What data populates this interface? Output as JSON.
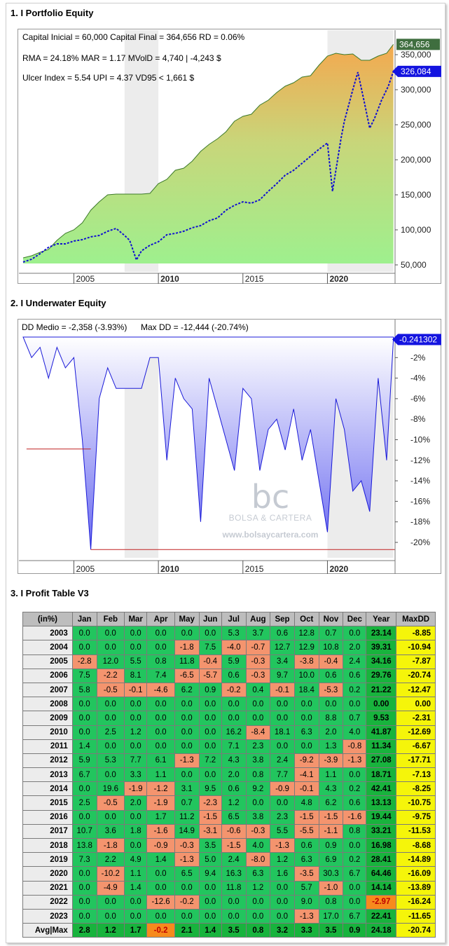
{
  "sections": {
    "equity_title": "1. I Portfolio Equity",
    "underwater_title": "2. I Underwater Equity",
    "profit_title": "3. I Profit Table V3"
  },
  "equity_stats": {
    "line1": "Capital Inicial = 60,000  Capital Final = 364,656  RD = 0.06%",
    "line2": "RMA = 24.18%   MAR = 1.17  MVolD = 4,740 | -4,243 $",
    "line3": "Ulcer Index = 5.54   UPI = 4.37   VD95 < 1,661 $"
  },
  "underwater_stats": {
    "left": "DD Medio = -2,358 (-3.93%)",
    "right": "Max DD = -12,444 (-20.74%)"
  },
  "watermark": {
    "site": "www.bolsaycartera.com"
  },
  "chart_data": [
    {
      "type": "area",
      "x_ticks": [
        "2005",
        "2010",
        "2015",
        "2020"
      ],
      "y_ticks": [
        "50,000",
        "100,000",
        "150,000",
        "200,000",
        "250,000",
        "300,000",
        "350,000"
      ],
      "ylim": [
        40000,
        385000
      ],
      "last_value_labels": [
        "364,656",
        "326,084"
      ],
      "series": [
        {
          "x": [
            2002.0,
            2002.5,
            2003.0,
            2003.5,
            2004.0,
            2004.5,
            2005.0,
            2005.5,
            2006.0,
            2006.5,
            2007.0,
            2007.5,
            2008.0,
            2008.5,
            2009.0,
            2009.5,
            2010.0,
            2010.5,
            2011.0,
            2011.5,
            2012.0,
            2012.5,
            2013.0,
            2013.5,
            2014.0,
            2014.5,
            2015.0,
            2015.5,
            2016.0,
            2016.5,
            2017.0,
            2017.5,
            2018.0,
            2018.5,
            2019.0,
            2019.5,
            2020.0,
            2020.5,
            2021.0,
            2021.5,
            2022.0,
            2022.5,
            2023.0,
            2023.5,
            2023.9
          ],
          "values": [
            60000,
            63000,
            68000,
            72000,
            85000,
            95000,
            100000,
            110000,
            128000,
            140000,
            150000,
            151000,
            151000,
            151000,
            151000,
            152000,
            166000,
            172000,
            185000,
            188000,
            198000,
            212000,
            222000,
            230000,
            240000,
            255000,
            262000,
            265000,
            278000,
            285000,
            296000,
            305000,
            310000,
            318000,
            320000,
            335000,
            348000,
            352000,
            350000,
            351000,
            342000,
            342000,
            348000,
            352000,
            364656
          ]
        },
        {
          "x": [
            2002.0,
            2002.5,
            2003.0,
            2003.5,
            2004.0,
            2004.5,
            2005.0,
            2005.5,
            2006.0,
            2006.5,
            2007.0,
            2007.5,
            2008.0,
            2008.3,
            2008.7,
            2009.0,
            2009.5,
            2010.0,
            2010.5,
            2011.0,
            2011.5,
            2012.0,
            2012.5,
            2013.0,
            2013.5,
            2014.0,
            2014.5,
            2015.0,
            2015.5,
            2016.0,
            2016.5,
            2017.0,
            2017.5,
            2018.0,
            2018.5,
            2019.0,
            2019.5,
            2020.0,
            2020.3,
            2020.8,
            2021.0,
            2021.5,
            2021.8,
            2022.2,
            2022.5,
            2022.8,
            2023.2,
            2023.6,
            2023.9
          ],
          "values": [
            54000,
            58000,
            66000,
            75000,
            80000,
            80000,
            84000,
            86000,
            90000,
            92000,
            98000,
            102000,
            92000,
            85000,
            57000,
            70000,
            78000,
            83000,
            93000,
            95000,
            98000,
            103000,
            106000,
            113000,
            117000,
            128000,
            135000,
            140000,
            138000,
            143000,
            155000,
            166000,
            178000,
            185000,
            195000,
            205000,
            215000,
            224000,
            155000,
            230000,
            255000,
            300000,
            325000,
            280000,
            245000,
            260000,
            285000,
            305000,
            326084
          ]
        }
      ]
    },
    {
      "type": "area",
      "x_ticks": [
        "2005",
        "2010",
        "2015",
        "2020"
      ],
      "y_ticks": [
        "-2%",
        "-4%",
        "-6%",
        "-8%",
        "-10%",
        "-12%",
        "-14%",
        "-16%",
        "-18%",
        "-20%"
      ],
      "ylim": [
        -21.5,
        0
      ],
      "last_value_labels": [
        "-0.241302"
      ],
      "series": [
        {
          "x": [
            2002.0,
            2002.5,
            2003.0,
            2003.5,
            2004.0,
            2004.5,
            2005.0,
            2005.5,
            2006.0,
            2006.5,
            2007.0,
            2007.5,
            2008.0,
            2008.5,
            2009.0,
            2009.5,
            2010.0,
            2010.5,
            2011.0,
            2011.5,
            2012.0,
            2012.5,
            2013.0,
            2013.5,
            2014.0,
            2014.5,
            2015.0,
            2015.5,
            2016.0,
            2016.5,
            2017.0,
            2017.5,
            2018.0,
            2018.5,
            2019.0,
            2019.5,
            2020.0,
            2020.5,
            2021.0,
            2021.5,
            2022.0,
            2022.5,
            2023.0,
            2023.5,
            2023.9
          ],
          "values": [
            0,
            -2,
            -1,
            -4,
            -1,
            -3,
            -2,
            -10,
            -20.7,
            -6,
            -3,
            -5,
            -5,
            -5,
            -5,
            -2,
            -2,
            -12,
            -4,
            -6,
            -7,
            -18,
            -4,
            -7,
            -10,
            -13,
            -5,
            -6,
            -13,
            -9,
            -8,
            -11,
            -7,
            -12,
            -9,
            -14,
            -19,
            -6,
            -9,
            -15,
            -14,
            -17,
            -4,
            -12,
            -0.24
          ]
        }
      ]
    }
  ],
  "profit_table": {
    "headers": [
      "(in%)",
      "Jan",
      "Feb",
      "Mar",
      "Apr",
      "May",
      "Jun",
      "Jul",
      "Aug",
      "Sep",
      "Oct",
      "Nov",
      "Dec",
      "Year",
      "MaxDD"
    ],
    "rows": [
      [
        "2003",
        "0.0",
        "0.0",
        "0.0",
        "0.0",
        "0.0",
        "0.0",
        "5.3",
        "3.7",
        "0.6",
        "12.8",
        "0.7",
        "0.0",
        "23.14",
        "-8.85"
      ],
      [
        "2004",
        "0.0",
        "0.0",
        "0.0",
        "0.0",
        "-1.8",
        "7.5",
        "-4.0",
        "-0.7",
        "12.7",
        "12.9",
        "10.8",
        "2.0",
        "39.31",
        "-10.94"
      ],
      [
        "2005",
        "-2.8",
        "12.0",
        "5.5",
        "0.8",
        "11.8",
        "-0.4",
        "5.9",
        "-0.3",
        "3.4",
        "-3.8",
        "-0.4",
        "2.4",
        "34.16",
        "-7.87"
      ],
      [
        "2006",
        "7.5",
        "-2.2",
        "8.1",
        "7.4",
        "-6.5",
        "-5.7",
        "0.6",
        "-0.3",
        "9.7",
        "10.0",
        "0.6",
        "0.6",
        "29.76",
        "-20.74"
      ],
      [
        "2007",
        "5.8",
        "-0.5",
        "-0.1",
        "-4.6",
        "6.2",
        "0.9",
        "-0.2",
        "0.4",
        "-0.1",
        "18.4",
        "-5.3",
        "0.2",
        "21.22",
        "-12.47"
      ],
      [
        "2008",
        "0.0",
        "0.0",
        "0.0",
        "0.0",
        "0.0",
        "0.0",
        "0.0",
        "0.0",
        "0.0",
        "0.0",
        "0.0",
        "0.0",
        "0.00",
        "0.00"
      ],
      [
        "2009",
        "0.0",
        "0.0",
        "0.0",
        "0.0",
        "0.0",
        "0.0",
        "0.0",
        "0.0",
        "0.0",
        "0.0",
        "8.8",
        "0.7",
        "9.53",
        "-2.31"
      ],
      [
        "2010",
        "0.0",
        "2.5",
        "1.2",
        "0.0",
        "0.0",
        "0.0",
        "16.2",
        "-8.4",
        "18.1",
        "6.3",
        "2.0",
        "4.0",
        "41.87",
        "-12.69"
      ],
      [
        "2011",
        "1.4",
        "0.0",
        "0.0",
        "0.0",
        "0.0",
        "0.0",
        "7.1",
        "2.3",
        "0.0",
        "0.0",
        "1.3",
        "-0.8",
        "11.34",
        "-6.67"
      ],
      [
        "2012",
        "5.9",
        "5.3",
        "7.7",
        "6.1",
        "-1.3",
        "7.2",
        "4.3",
        "3.8",
        "2.4",
        "-9.2",
        "-3.9",
        "-1.3",
        "27.08",
        "-17.71"
      ],
      [
        "2013",
        "6.7",
        "0.0",
        "3.3",
        "1.1",
        "0.0",
        "0.0",
        "2.0",
        "0.8",
        "7.7",
        "-4.1",
        "1.1",
        "0.0",
        "18.71",
        "-7.13"
      ],
      [
        "2014",
        "0.0",
        "19.6",
        "-1.9",
        "-1.2",
        "3.1",
        "9.5",
        "0.6",
        "9.2",
        "-0.9",
        "-0.1",
        "4.3",
        "0.2",
        "42.41",
        "-8.25"
      ],
      [
        "2015",
        "2.5",
        "-0.5",
        "2.0",
        "-1.9",
        "0.7",
        "-2.3",
        "1.2",
        "0.0",
        "0.0",
        "4.8",
        "6.2",
        "0.6",
        "13.13",
        "-10.75"
      ],
      [
        "2016",
        "0.0",
        "0.0",
        "0.0",
        "1.7",
        "11.2",
        "-1.5",
        "6.5",
        "3.8",
        "2.3",
        "-1.5",
        "-1.5",
        "-1.6",
        "19.44",
        "-9.75"
      ],
      [
        "2017",
        "10.7",
        "3.6",
        "1.8",
        "-1.6",
        "14.9",
        "-3.1",
        "-0.6",
        "-0.3",
        "5.5",
        "-5.5",
        "-1.1",
        "0.8",
        "33.21",
        "-11.53"
      ],
      [
        "2018",
        "13.8",
        "-1.8",
        "0.0",
        "-0.9",
        "-0.3",
        "3.5",
        "-1.5",
        "4.0",
        "-1.3",
        "0.6",
        "0.9",
        "0.0",
        "16.98",
        "-8.68"
      ],
      [
        "2019",
        "7.3",
        "2.2",
        "4.9",
        "1.4",
        "-1.3",
        "5.0",
        "2.4",
        "-8.0",
        "1.2",
        "6.3",
        "6.9",
        "0.2",
        "28.41",
        "-14.89"
      ],
      [
        "2020",
        "0.0",
        "-10.2",
        "1.1",
        "0.0",
        "6.5",
        "9.4",
        "16.3",
        "6.3",
        "1.6",
        "-3.5",
        "30.3",
        "6.7",
        "64.46",
        "-16.09"
      ],
      [
        "2021",
        "0.0",
        "-4.9",
        "1.4",
        "0.0",
        "0.0",
        "0.0",
        "11.8",
        "1.2",
        "0.0",
        "5.7",
        "-1.0",
        "0.0",
        "14.14",
        "-13.89"
      ],
      [
        "2022",
        "0.0",
        "0.0",
        "0.0",
        "-12.6",
        "-0.2",
        "0.0",
        "0.0",
        "0.0",
        "0.0",
        "9.0",
        "0.8",
        "0.0",
        "-2.97",
        "-16.24"
      ],
      [
        "2023",
        "0.0",
        "0.0",
        "0.0",
        "0.0",
        "0.0",
        "0.0",
        "0.0",
        "0.0",
        "0.0",
        "-1.3",
        "17.0",
        "6.7",
        "22.41",
        "-11.65"
      ]
    ],
    "avg_row": [
      "Avg|Max",
      "2.8",
      "1.2",
      "1.7",
      "-0.2",
      "2.1",
      "1.4",
      "3.5",
      "0.8",
      "3.2",
      "3.3",
      "3.5",
      "0.9",
      "24.18",
      "-20.74"
    ]
  }
}
